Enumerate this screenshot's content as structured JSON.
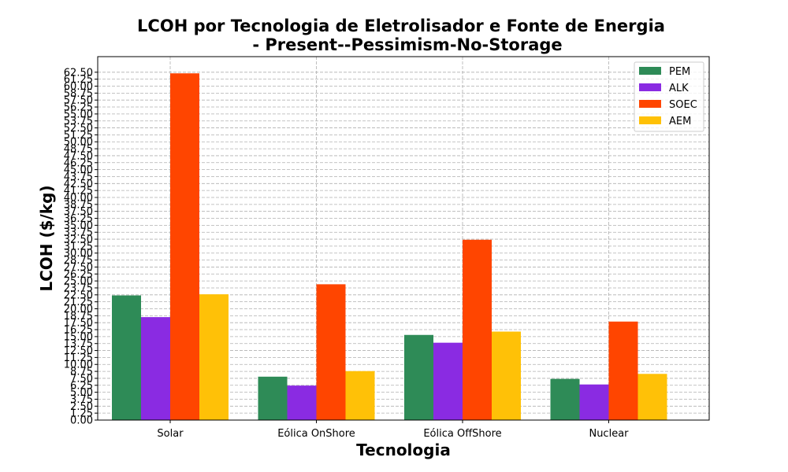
{
  "chart_data": {
    "type": "bar",
    "title_line1": "LCOH por Tecnologia de Eletrolisador e Fonte de Energia",
    "title_line2": "- Present--Pessimism-No-Storage",
    "xlabel": "Tecnologia",
    "ylabel": "LCOH ($/kg)",
    "categories": [
      "Solar",
      "Eólica OnShore",
      "Eólica OffShore",
      "Nuclear"
    ],
    "series": [
      {
        "name": "PEM",
        "color": "#2e8b57",
        "values": [
          22.4,
          7.8,
          15.3,
          7.4
        ]
      },
      {
        "name": "ALK",
        "color": "#8a2be2",
        "values": [
          18.5,
          6.2,
          13.9,
          6.4
        ]
      },
      {
        "name": "SOEC",
        "color": "#ff4500",
        "values": [
          62.3,
          24.4,
          32.4,
          17.7
        ]
      },
      {
        "name": "AEM",
        "color": "#ffc107",
        "values": [
          22.6,
          8.8,
          15.9,
          8.3
        ]
      }
    ],
    "ylim": [
      0,
      65.3
    ],
    "yticks": [
      "0.00",
      "1.25",
      "2.50",
      "3.75",
      "5.00",
      "6.25",
      "7.50",
      "8.75",
      "10.00",
      "11.25",
      "12.50",
      "13.75",
      "15.00",
      "16.25",
      "17.50",
      "18.75",
      "20.00",
      "21.25",
      "22.50",
      "23.75",
      "25.00",
      "26.25",
      "27.50",
      "28.75",
      "30.00",
      "31.25",
      "32.50",
      "33.75",
      "35.00",
      "36.25",
      "37.50",
      "38.75",
      "40.00",
      "41.25",
      "42.50",
      "43.75",
      "45.00",
      "46.25",
      "47.50",
      "48.75",
      "50.00",
      "51.25",
      "52.50",
      "53.75",
      "55.00",
      "56.25",
      "57.50",
      "58.75",
      "60.00",
      "61.25",
      "62.50"
    ],
    "grid": true,
    "legend_position": "top-right"
  }
}
